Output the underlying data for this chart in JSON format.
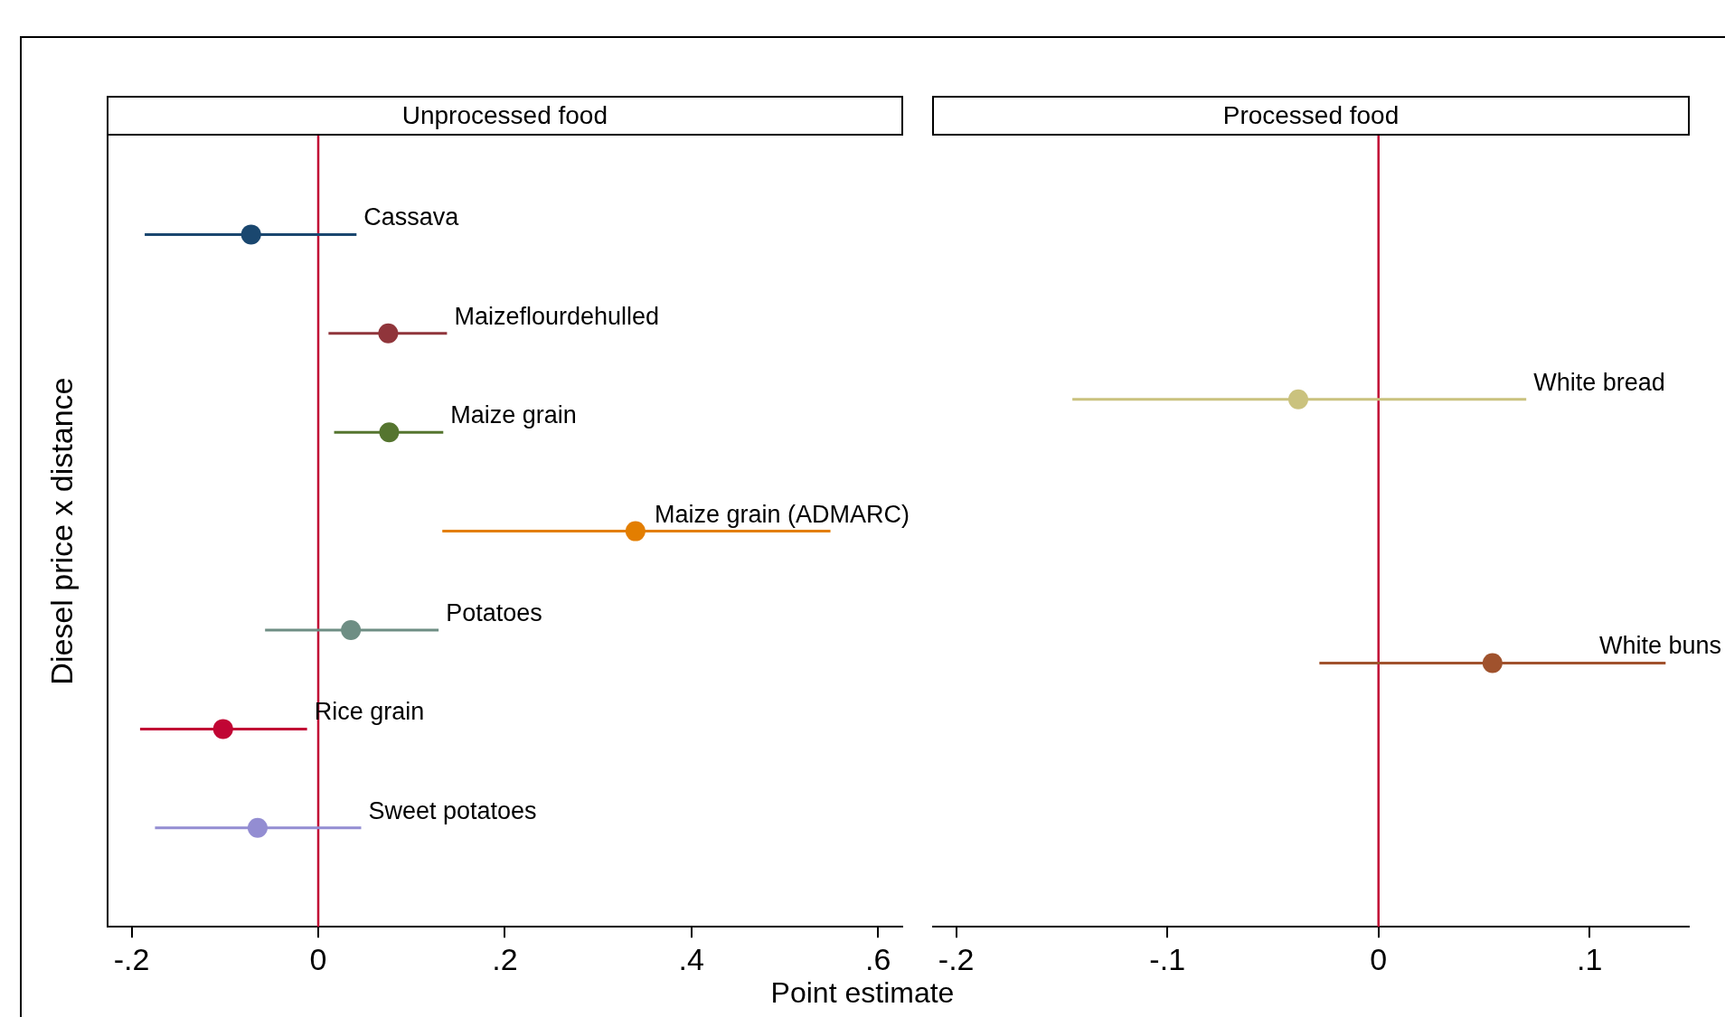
{
  "chart_data": [
    {
      "type": "scatter",
      "orientation": "horizontal",
      "title": "Unprocessed food",
      "ylabel": "Diesel price x distance",
      "xlabel": "Point estimate",
      "categories": [
        null,
        null,
        null,
        null,
        null,
        null,
        null
      ],
      "marker": "circle",
      "tick_labels": "x",
      "series": [
        {
          "name": "Cassava",
          "color": "#1a476f",
          "values": [
            -0.072,
            null,
            null,
            null,
            null,
            null,
            null
          ],
          "errors": [
            [
              -0.186,
              0.041
            ],
            null,
            null,
            null,
            null,
            null,
            null
          ]
        },
        {
          "name": "Maizeflourdehulled",
          "color": "#90353b",
          "values": [
            null,
            0.075,
            null,
            null,
            null,
            null,
            null
          ],
          "errors": [
            null,
            [
              0.011,
              0.138
            ],
            null,
            null,
            null,
            null,
            null
          ]
        },
        {
          "name": "Maize grain",
          "color": "#55752f",
          "values": [
            null,
            null,
            0.076,
            null,
            null,
            null,
            null
          ],
          "errors": [
            null,
            null,
            [
              0.017,
              0.134
            ],
            null,
            null,
            null,
            null
          ]
        },
        {
          "name": "Maize grain (ADMARC)",
          "color": "#e37e00",
          "values": [
            null,
            null,
            null,
            0.34,
            null,
            null,
            null
          ],
          "errors": [
            null,
            null,
            null,
            [
              0.133,
              0.549
            ],
            null,
            null,
            null
          ]
        },
        {
          "name": "Potatoes",
          "color": "#6e8e84",
          "values": [
            null,
            null,
            null,
            null,
            0.035,
            null,
            null
          ],
          "errors": [
            null,
            null,
            null,
            null,
            [
              -0.057,
              0.129
            ],
            null,
            null
          ]
        },
        {
          "name": "Rice grain",
          "color": "#c10534",
          "values": [
            null,
            null,
            null,
            null,
            null,
            -0.102,
            null
          ],
          "errors": [
            null,
            null,
            null,
            null,
            null,
            [
              -0.191,
              -0.012
            ],
            null
          ]
        },
        {
          "name": "Sweet potatoes",
          "color": "#938dd2",
          "values": [
            null,
            null,
            null,
            null,
            null,
            null,
            -0.065
          ],
          "errors": [
            null,
            null,
            null,
            null,
            null,
            null,
            [
              -0.175,
              0.046
            ]
          ]
        }
      ],
      "xlim": [
        -0.226,
        0.626
      ],
      "xticks": [
        {
          "value": -0.2,
          "label": "-.2"
        },
        0,
        {
          "value": 0.2,
          "label": ".2"
        },
        {
          "value": 0.4,
          "label": ".4"
        },
        {
          "value": 0.6,
          "label": ".6"
        }
      ],
      "ref_lines": [
        {
          "axis": "x",
          "value": 0,
          "color": "#c10534"
        }
      ]
    },
    {
      "type": "scatter",
      "orientation": "horizontal",
      "title": "Processed food",
      "categories": [
        null,
        null
      ],
      "marker": "circle",
      "tick_labels": "x",
      "series": [
        {
          "name": "White bread",
          "color": "#cac27e",
          "values": [
            -0.038,
            null
          ],
          "errors": [
            [
              -0.145,
              0.07
            ],
            null
          ]
        },
        {
          "name": "White buns",
          "color": "#a0522d",
          "values": [
            null,
            0.054
          ],
          "errors": [
            null,
            [
              -0.028,
              0.136
            ]
          ]
        }
      ],
      "xlim": [
        -0.211,
        0.147
      ],
      "xticks": [
        {
          "value": -0.2,
          "label": "-.2"
        },
        {
          "value": -0.1,
          "label": "-.1"
        },
        0,
        {
          "value": 0.1,
          "label": ".1"
        }
      ],
      "ref_lines": [
        {
          "axis": "x",
          "value": 0,
          "color": "#c10534"
        }
      ]
    }
  ]
}
